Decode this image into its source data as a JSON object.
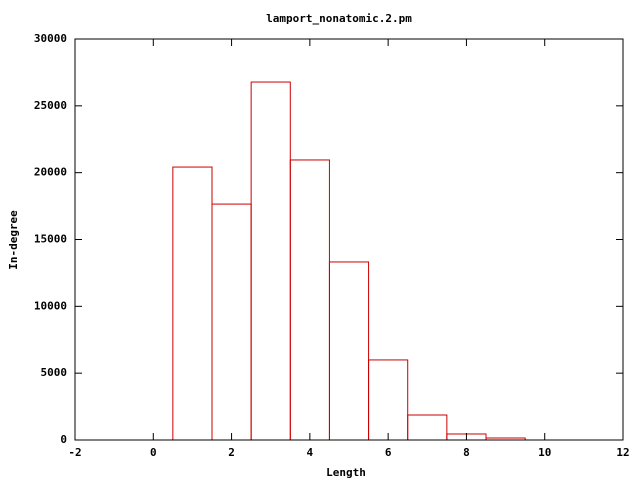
{
  "chart_data": {
    "type": "histogram",
    "title": "lamport_nonatomic.2.pm",
    "x_label": "Length",
    "y_label": "In-degree",
    "bins": [
      0.5,
      1.5,
      2.5,
      3.5,
      4.5,
      5.5,
      6.5,
      7.5,
      8.5,
      9.5
    ],
    "values": [
      20420,
      17650,
      26780,
      20950,
      13320,
      5990,
      1870,
      450,
      150
    ],
    "color": "#cc0000",
    "xlim": [
      -2,
      12
    ],
    "xticks": [
      -2,
      0,
      2,
      4,
      6,
      8,
      10,
      12
    ],
    "ylim": [
      0,
      30000
    ],
    "yticks": [
      0,
      5000,
      10000,
      15000,
      20000,
      25000,
      30000
    ],
    "grid": false
  }
}
